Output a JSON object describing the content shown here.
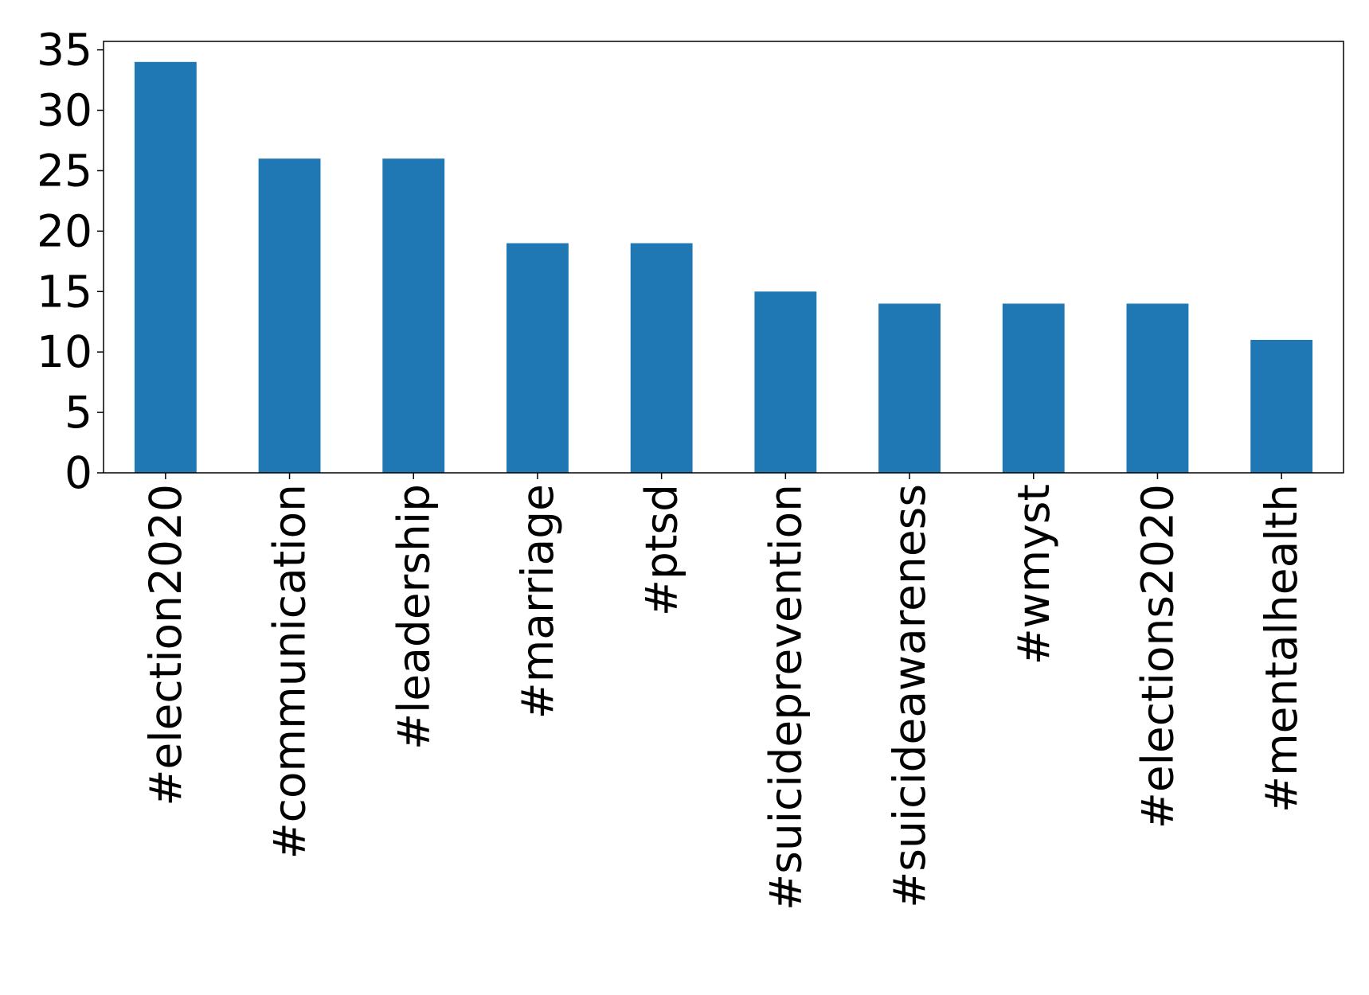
{
  "chart_data": {
    "type": "bar",
    "categories": [
      "#election2020",
      "#communication",
      "#leadership",
      "#marriage",
      "#ptsd",
      "#suicideprevention",
      "#suicideawareness",
      "#wmyst",
      "#elections2020",
      "#mentalhealth"
    ],
    "values": [
      34,
      26,
      26,
      19,
      19,
      15,
      14,
      14,
      14,
      11
    ],
    "color": "#1f77b4",
    "ylim": [
      0,
      35.7
    ],
    "yticks": [
      0,
      5,
      10,
      15,
      20,
      25,
      30,
      35
    ],
    "grid": false
  }
}
